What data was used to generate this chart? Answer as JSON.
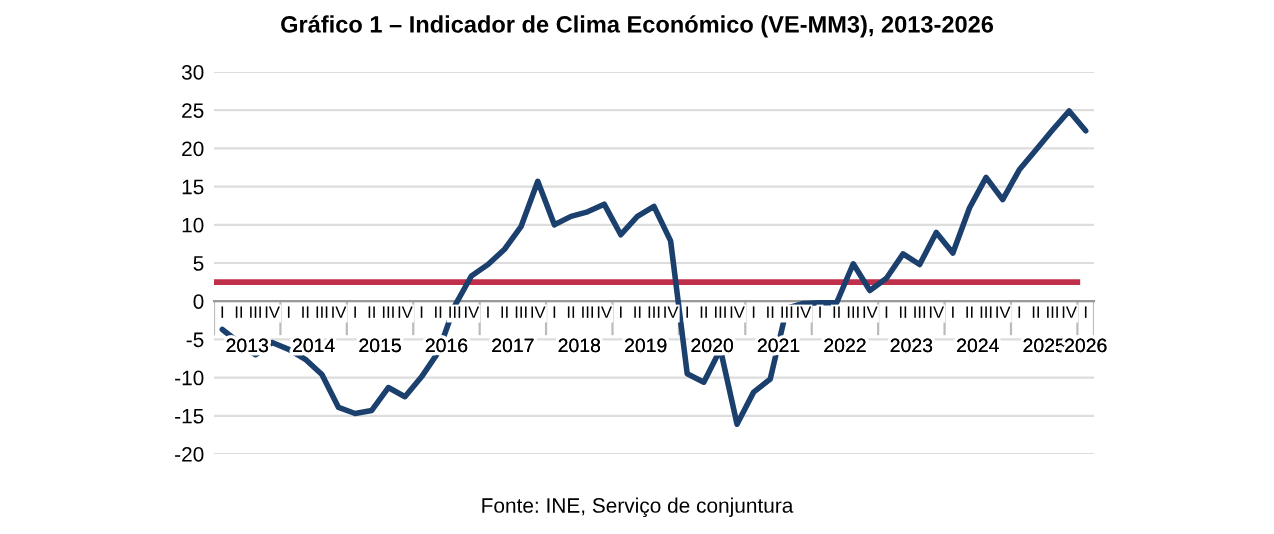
{
  "chart_data": {
    "type": "line",
    "title": "Gráfico 1 – Indicador de Clima Económico (VE-MM3), 2013-2026",
    "categories": [
      "I",
      "II",
      "III",
      "IV",
      "I",
      "II",
      "III",
      "IV",
      "I",
      "II",
      "III",
      "IV",
      "I",
      "II",
      "III",
      "IV",
      "I",
      "II",
      "III",
      "IV",
      "I",
      "II",
      "III",
      "IV",
      "I",
      "II",
      "III",
      "IV",
      "I",
      "II",
      "III",
      "IV",
      "I",
      "II",
      "III",
      "IV",
      "I",
      "II",
      "III",
      "IV",
      "I",
      "II",
      "III",
      "IV",
      "I",
      "II",
      "III",
      "IV",
      "I",
      "II",
      "III",
      "IV",
      "I"
    ],
    "series": [
      {
        "color": "#1b406d",
        "values": [
          -3.7,
          -5.4,
          -7,
          -5.4,
          -6.3,
          -7.6,
          -9.6,
          -13.9,
          -14.7,
          -14.3,
          -11.3,
          -12.5,
          -9.9,
          -6.7,
          -0.6,
          3.3,
          4.8,
          6.8,
          9.8,
          15.7,
          10,
          11.1,
          11.7,
          12.7,
          8.7,
          11.1,
          12.4,
          7.9,
          -9.5,
          -10.6,
          -6.3,
          -16.1,
          -11.9,
          -10.2,
          -0.9,
          -0.3,
          -0.2,
          -0.2,
          4.9,
          1.4,
          3,
          6.2,
          4.8,
          9,
          6.3,
          12.2,
          16.2,
          13.3,
          17.2,
          19.8,
          22.4,
          24.9,
          22.3
        ]
      }
    ],
    "ylim": [
      -20,
      30
    ],
    "yticks": [
      -20,
      -15,
      -10,
      -5,
      0,
      5,
      10,
      15,
      20,
      25,
      30
    ],
    "grid": "y",
    "legend": false,
    "marker": "none",
    "line_style": "solid",
    "ref_lines": [
      {
        "axis": "y",
        "value": 2.5,
        "label": null,
        "color": "#c0304a"
      }
    ],
    "annotations": [
      "Fonte: INE, Serviço de conjuntura",
      "2013",
      "2014",
      "2015",
      "2016",
      "2017",
      "2018",
      "2019",
      "2020",
      "2021",
      "2022",
      "2023",
      "2024",
      "2025",
      "2026"
    ]
  }
}
